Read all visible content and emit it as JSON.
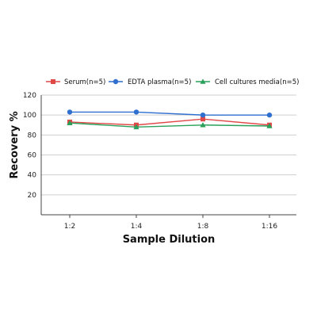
{
  "chart_data": {
    "type": "line",
    "categories": [
      "1:2",
      "1:4",
      "1:8",
      "1:16"
    ],
    "xlabel": "Sample Dilution",
    "ylabel": "Recovery %",
    "ylim": [
      0,
      120
    ],
    "yticks": [
      20,
      40,
      60,
      80,
      100,
      120
    ],
    "grid": true,
    "legend_position": "top",
    "series": [
      {
        "name": "Serum(n=5)",
        "values": [
          93,
          90,
          96,
          90
        ],
        "color": "#e04848",
        "marker": "square"
      },
      {
        "name": "EDTA plasma(n=5)",
        "values": [
          103,
          103,
          100,
          100
        ],
        "color": "#2f6fcf",
        "marker": "circle"
      },
      {
        "name": "Cell cultures media(n=5)",
        "values": [
          92,
          88,
          90,
          89
        ],
        "color": "#2aa05a",
        "marker": "triangle"
      }
    ]
  }
}
